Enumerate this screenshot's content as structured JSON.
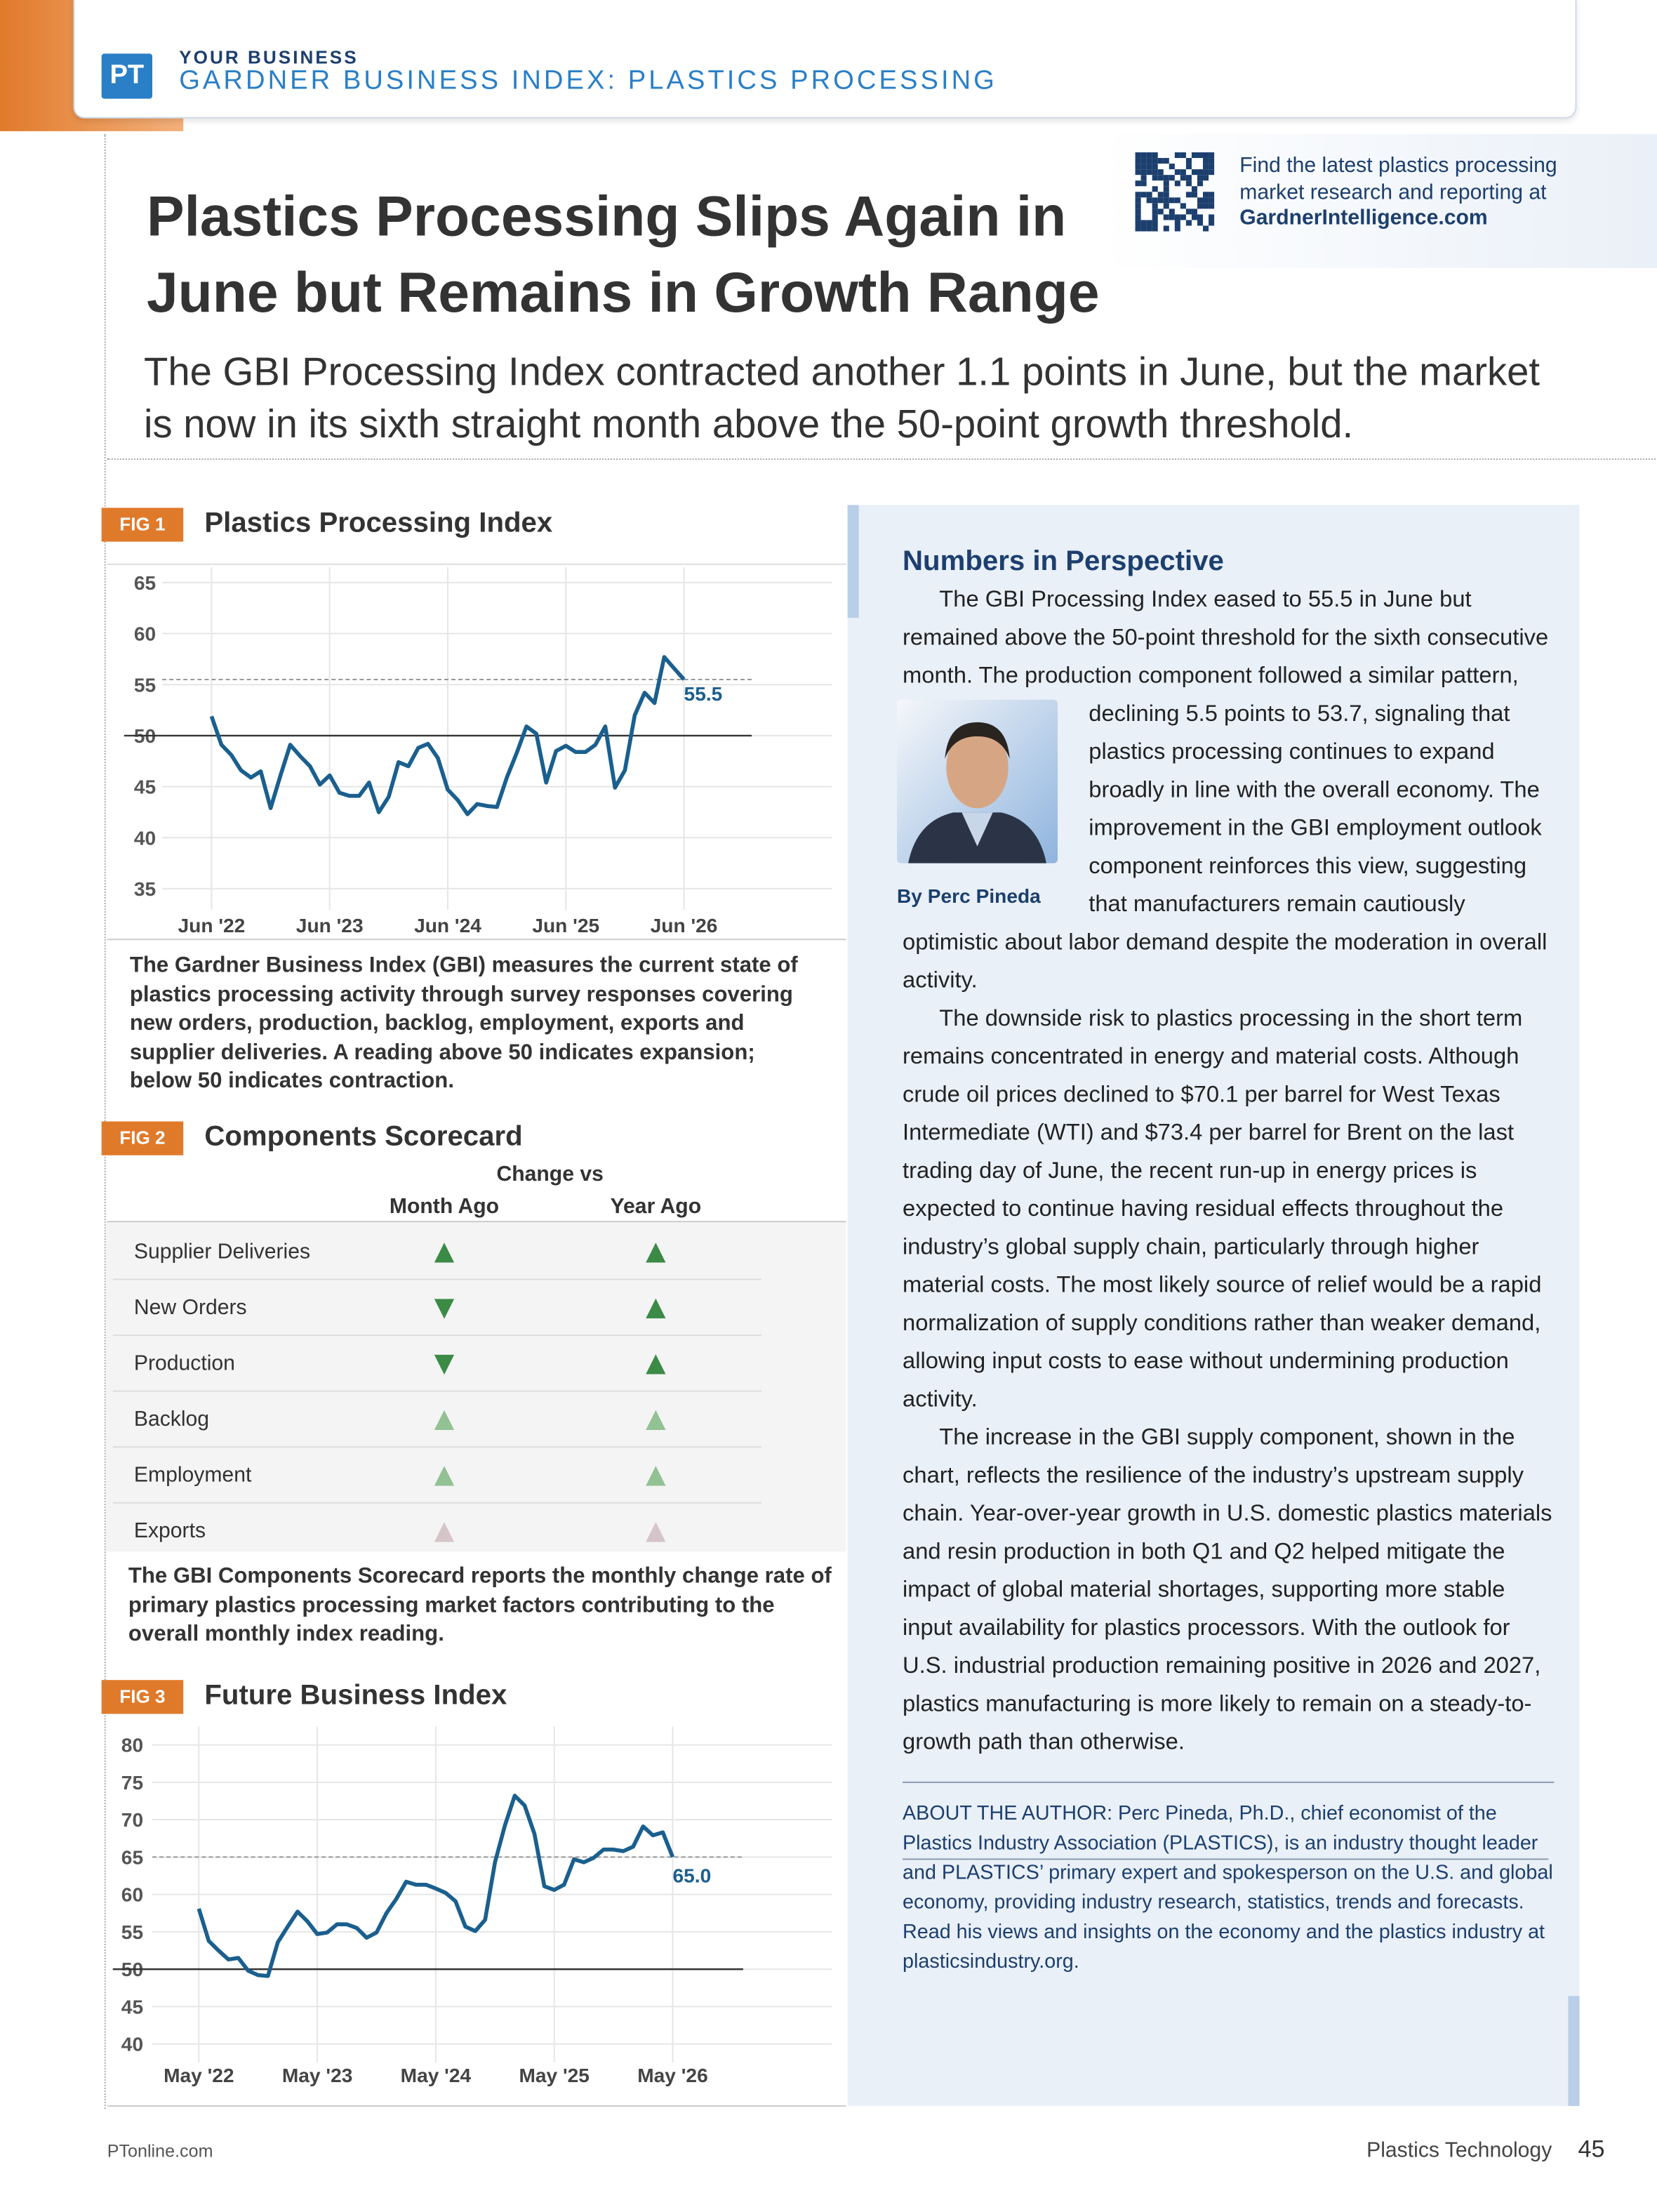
{
  "header": {
    "logo": "PT",
    "section": "YOUR BUSINESS",
    "title": "GARDNER BUSINESS INDEX: PLASTICS PROCESSING"
  },
  "promo": {
    "text": "Find the latest plastics processing market research and reporting at",
    "link": "GardnerIntelligence.com"
  },
  "headline": "Plastics Processing Slips Again in June but Remains in Growth Range",
  "subhead": "The GBI Processing Index contracted another 1.1 points in June, but the market is now in its sixth straight month above the 50-point growth threshold.",
  "chart_data": [
    {
      "type": "line",
      "figure": "FIG 1",
      "title": "Plastics Processing Index",
      "color": "#1a5f8e",
      "grid": true,
      "categories": [
        "Jun '22",
        null,
        null,
        null,
        null,
        null,
        null,
        null,
        null,
        null,
        null,
        null,
        "Jun '23",
        null,
        null,
        null,
        null,
        null,
        null,
        null,
        null,
        null,
        null,
        null,
        "Jun '24",
        null,
        null,
        null,
        null,
        null,
        null,
        null,
        null,
        null,
        null,
        null,
        "Jun '25",
        null,
        null,
        null,
        null,
        null,
        null,
        null,
        null,
        null,
        null,
        null,
        "Jun '26"
      ],
      "values": [
        51.9,
        49.1,
        48.1,
        46.6,
        45.9,
        46.5,
        42.9,
        46.1,
        49.1,
        48.0,
        47.0,
        45.2,
        46.1,
        44.4,
        44.1,
        44.1,
        45.4,
        42.5,
        44.0,
        47.4,
        47.0,
        48.8,
        49.2,
        47.8,
        44.7,
        43.7,
        42.3,
        43.3,
        43.1,
        43.0,
        45.9,
        48.3,
        50.9,
        50.2,
        45.4,
        48.5,
        49.0,
        48.4,
        48.4,
        49.1,
        50.9,
        44.9,
        46.6,
        52.0,
        54.2,
        53.2,
        57.7,
        56.6,
        55.5
      ],
      "value_labels": [
        null,
        null,
        null,
        null,
        null,
        null,
        null,
        null,
        null,
        null,
        null,
        null,
        null,
        null,
        null,
        null,
        null,
        null,
        null,
        null,
        null,
        null,
        null,
        null,
        null,
        null,
        null,
        null,
        null,
        null,
        null,
        null,
        null,
        null,
        null,
        null,
        null,
        null,
        null,
        null,
        null,
        null,
        null,
        null,
        null,
        null,
        null,
        null,
        "55.5"
      ],
      "threshold": 50,
      "ylim": [
        35,
        65
      ],
      "yticks": [
        35,
        40,
        45,
        50,
        55,
        60,
        65
      ],
      "caption": "The Gardner Business Index (GBI) measures the current state of plastics processing activity through survey responses covering new orders, production, backlog, employment, exports and supplier deliveries. A reading above 50 indicates expansion; below 50 indicates contraction."
    },
    {
      "type": "line",
      "figure": "FIG 3",
      "title": "Future Business Index",
      "color": "#1a5f8e",
      "grid": true,
      "categories": [
        "May '22",
        null,
        null,
        null,
        null,
        null,
        null,
        null,
        null,
        null,
        null,
        null,
        "May '23",
        null,
        null,
        null,
        null,
        null,
        null,
        null,
        null,
        null,
        null,
        null,
        "May '24",
        null,
        null,
        null,
        null,
        null,
        null,
        null,
        null,
        null,
        null,
        null,
        "May '25",
        null,
        null,
        null,
        null,
        null,
        null,
        null,
        null,
        null,
        null,
        null,
        "May '26"
      ],
      "values": [
        58.1,
        53.8,
        52.5,
        51.3,
        51.5,
        49.8,
        49.2,
        49.1,
        53.6,
        55.7,
        57.7,
        56.4,
        54.7,
        54.9,
        56.0,
        56.0,
        55.5,
        54.2,
        54.9,
        57.5,
        59.4,
        61.7,
        61.3,
        61.3,
        60.8,
        60.2,
        59.1,
        55.7,
        55.1,
        56.6,
        64.3,
        69.2,
        73.2,
        71.9,
        68.1,
        61.1,
        60.6,
        61.3,
        64.7,
        64.3,
        64.9,
        66.0,
        66.0,
        65.8,
        66.4,
        69.1,
        67.9,
        68.3,
        65.0
      ],
      "value_labels": [
        null,
        null,
        null,
        null,
        null,
        null,
        null,
        null,
        null,
        null,
        null,
        null,
        null,
        null,
        null,
        null,
        null,
        null,
        null,
        null,
        null,
        null,
        null,
        null,
        null,
        null,
        null,
        null,
        null,
        null,
        null,
        null,
        null,
        null,
        null,
        null,
        null,
        null,
        null,
        null,
        null,
        null,
        null,
        null,
        null,
        null,
        null,
        null,
        "65.0"
      ],
      "threshold": 50,
      "ylim": [
        40,
        80
      ],
      "yticks": [
        40,
        45,
        50,
        55,
        60,
        65,
        70,
        75,
        80
      ]
    }
  ],
  "scorecard": {
    "figure": "FIG 2",
    "title": "Components Scorecard",
    "group_header": "Change vs",
    "columns": [
      "Month Ago",
      "Year Ago"
    ],
    "rows": [
      {
        "name": "Supplier Deliveries",
        "cells": [
          {
            "symbol": "▲",
            "color": "#3b8a46"
          },
          {
            "symbol": "▲",
            "color": "#3b8a46"
          }
        ]
      },
      {
        "name": "New Orders",
        "cells": [
          {
            "symbol": "▼",
            "color": "#3b8a46"
          },
          {
            "symbol": "▲",
            "color": "#3b8a46"
          }
        ]
      },
      {
        "name": "Production",
        "cells": [
          {
            "symbol": "▼",
            "color": "#3b8a46"
          },
          {
            "symbol": "▲",
            "color": "#3b8a46"
          }
        ]
      },
      {
        "name": "Backlog",
        "cells": [
          {
            "symbol": "▲",
            "color": "#92c194"
          },
          {
            "symbol": "▲",
            "color": "#92c194"
          }
        ]
      },
      {
        "name": "Employment",
        "cells": [
          {
            "symbol": "▲",
            "color": "#92c194"
          },
          {
            "symbol": "▲",
            "color": "#92c194"
          }
        ]
      },
      {
        "name": "Exports",
        "cells": [
          {
            "symbol": "▲",
            "color": "#d5c5c9"
          },
          {
            "symbol": "▲",
            "color": "#d5c5c9"
          }
        ]
      }
    ],
    "caption": "The GBI Components Scorecard reports the monthly change rate of primary plastics processing market factors contributing to the overall monthly index reading."
  },
  "sidebar": {
    "title": "Numbers in Perspective",
    "byline": "By Perc Pineda",
    "paragraphs": [
      "The GBI Processing Index eased to 55.5 in June but remained above the 50-point threshold for the sixth consecutive month. The production component followed a similar pattern, declining 5.5 points to 53.7, signaling that plastics processing continues to expand broadly in line with the overall economy. The improvement in the GBI employment outlook component reinforces this view, suggesting that manufacturers remain cautiously optimistic about labor demand despite the moderation in overall activity.",
      "The downside risk to plastics processing in the short term remains concentrated in energy and material costs. Although crude oil prices declined to $70.1 per barrel for West Texas Intermediate (WTI) and $73.4 per barrel for Brent on the last trading day of June, the recent run-up in energy prices is expected to continue having residual effects throughout the industry’s global supply chain, particularly through higher material costs. The most likely source of relief would be a rapid normalization of supply conditions rather than weaker demand, allowing input costs to ease without undermining production activity.",
      "The increase in the GBI supply component, shown in the chart, reflects the resilience of the industry’s upstream supply chain. Year-over-year growth in U.S. domestic plastics materials and resin production in both Q1 and Q2 helped mitigate the impact of global material shortages, supporting more stable input availability for plastics processors. With the outlook for U.S. industrial production remaining positive in 2026 and 2027, plastics manufacturing is more likely to remain on a steady-to-growth path than otherwise."
    ],
    "about": "ABOUT THE AUTHOR: Perc Pineda, Ph.D., chief economist of the Plastics Industry Association (PLASTICS), is an industry thought leader and PLASTICS’ primary expert and spokesperson on the U.S. and global economy, providing industry research, statistics, trends and forecasts. Read his views and insights on the economy and the plastics industry at plasticsindustry.org."
  },
  "footer": {
    "site": "PTonline.com",
    "publication": "Plastics Technology",
    "page": "45"
  }
}
